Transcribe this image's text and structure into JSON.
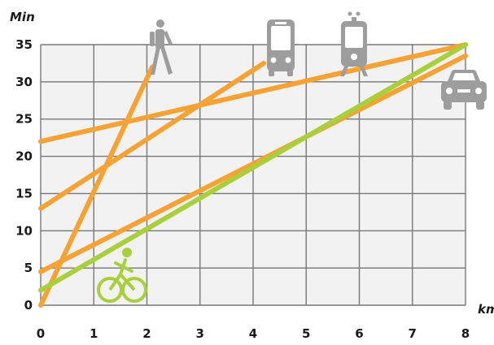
{
  "chart_data": {
    "type": "line",
    "xlabel": "km",
    "ylabel": "Min",
    "xlim": [
      0,
      8
    ],
    "ylim": [
      0,
      35
    ],
    "x_ticks": [
      "0",
      "1",
      "2",
      "3",
      "4",
      "5",
      "6",
      "7",
      "8"
    ],
    "y_ticks": [
      "0",
      "5",
      "10",
      "15",
      "20",
      "25",
      "30",
      "35"
    ],
    "grid": true,
    "series": [
      {
        "icon": "walking-person-icon",
        "color": "#f7a234",
        "x": [
          0,
          2.1
        ],
        "y": [
          0,
          32
        ]
      },
      {
        "icon": "bus-icon",
        "color": "#f7a234",
        "x": [
          0,
          4.2
        ],
        "y": [
          13,
          32.5
        ]
      },
      {
        "icon": "tram-icon",
        "color": "#f7a234",
        "x": [
          0,
          8
        ],
        "y": [
          22,
          35
        ]
      },
      {
        "icon": "car-icon",
        "color": "#f7a234",
        "x": [
          0,
          8
        ],
        "y": [
          4.5,
          33.5
        ]
      },
      {
        "icon": "bicycle-icon",
        "color": "#a9cf3c",
        "x": [
          0,
          8
        ],
        "y": [
          2,
          35
        ]
      }
    ]
  }
}
